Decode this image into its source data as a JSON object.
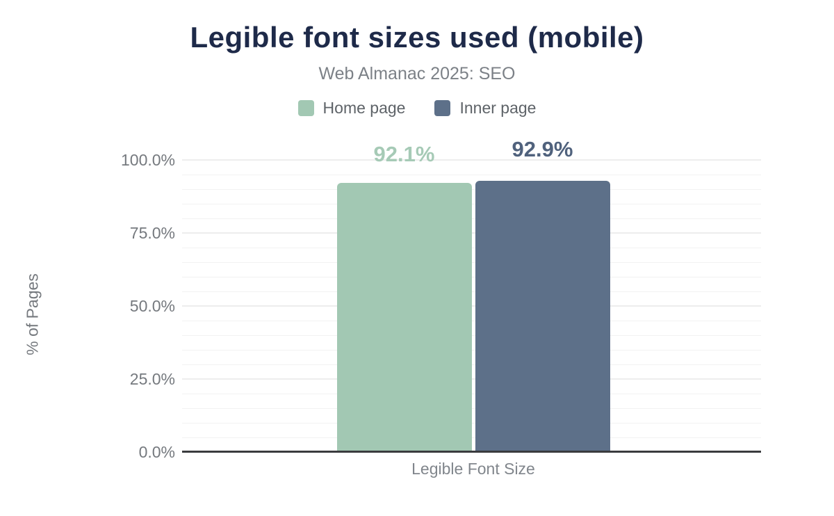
{
  "chart_data": {
    "type": "bar",
    "title": "Legible font sizes used (mobile)",
    "subtitle": "Web Almanac 2025: SEO",
    "categories": [
      "Legible Font Size"
    ],
    "series": [
      {
        "name": "Home page",
        "values": [
          92.1
        ],
        "color": "#a2c8b3",
        "label_color": "#a6cab6",
        "data_labels": [
          "92.1%"
        ]
      },
      {
        "name": "Inner page",
        "values": [
          92.9
        ],
        "color": "#5d7089",
        "label_color": "#50627d",
        "data_labels": [
          "92.9%"
        ]
      }
    ],
    "xlabel": "",
    "ylabel": "% of Pages",
    "ylim": [
      0,
      100
    ],
    "yticks": [
      {
        "value": 100,
        "label": "100.0%"
      },
      {
        "value": 75,
        "label": "75.0%"
      },
      {
        "value": 50,
        "label": "50.0%"
      },
      {
        "value": 25,
        "label": "25.0%"
      },
      {
        "value": 0,
        "label": "0.0%"
      }
    ],
    "grid": {
      "minor_step": 5,
      "major_step": 25,
      "visible": true
    },
    "legend_position": "top"
  },
  "colors": {
    "title": "#1e2a49",
    "subtitle": "#7c8187",
    "axis_text": "#75797e",
    "axis_line": "#3a3b3e",
    "gridline": "#f2f2f2",
    "background": "#ffffff"
  }
}
